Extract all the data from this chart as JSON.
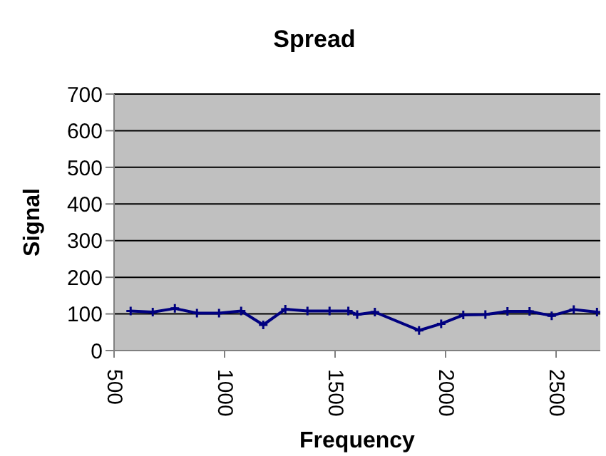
{
  "chart_data": {
    "type": "line",
    "title": "Spread",
    "xlabel": "Frequency",
    "ylabel": "Signal",
    "x": [
      575,
      675,
      775,
      875,
      975,
      1075,
      1175,
      1275,
      1375,
      1475,
      1560,
      1600,
      1680,
      1880,
      1980,
      2080,
      2180,
      2280,
      2380,
      2480,
      2580,
      2685
    ],
    "series": [
      {
        "color": "#000080",
        "values": [
          108,
          105,
          115,
          102,
          102,
          108,
          70,
          113,
          108,
          108,
          108,
          98,
          105,
          55,
          73,
          97,
          98,
          107,
          107,
          95,
          112,
          105
        ]
      }
    ],
    "xlim": [
      500,
      2700
    ],
    "xticks": [
      500,
      1000,
      1500,
      2000,
      2500
    ],
    "ylim": [
      0,
      700
    ],
    "yticks": [
      0,
      100,
      200,
      300,
      400,
      500,
      600,
      700
    ],
    "grid": "y",
    "legend": false,
    "marker": "cross",
    "line_style": "solid"
  }
}
